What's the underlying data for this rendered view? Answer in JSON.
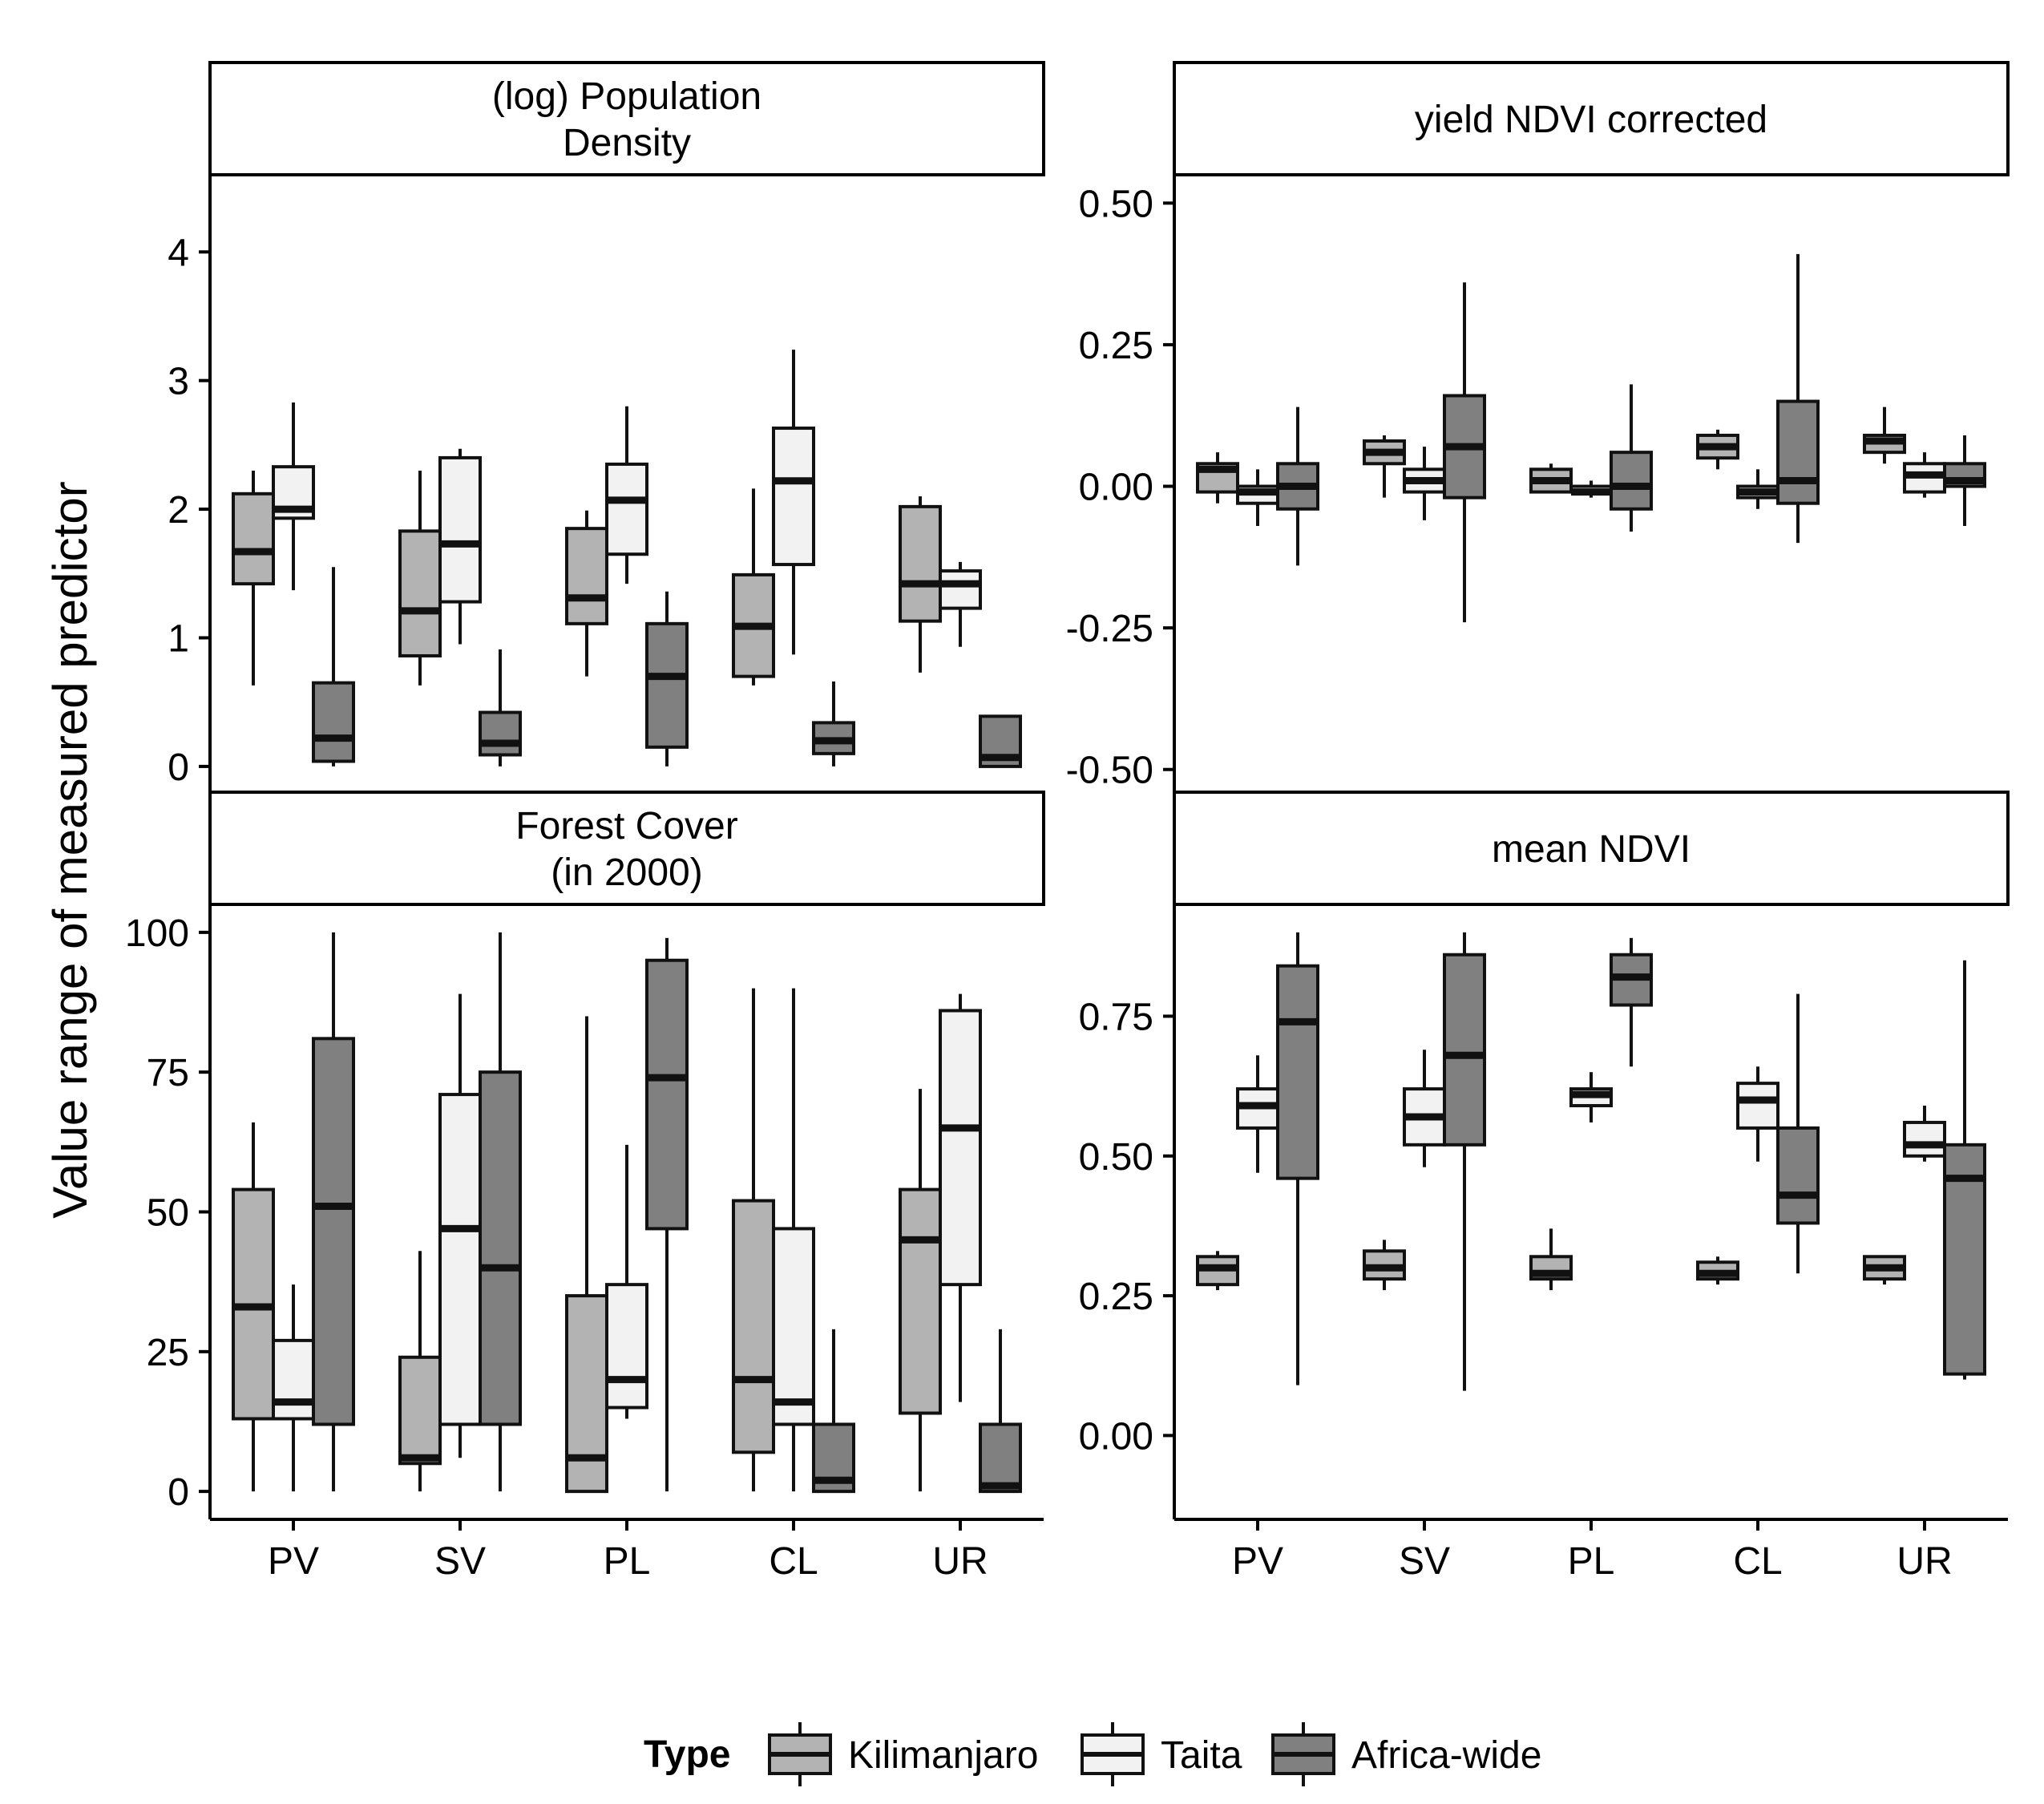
{
  "chart_data": {
    "type": "boxplot",
    "ylabel": "Value range of measured predictor",
    "categories": [
      "PV",
      "SV",
      "PL",
      "CL",
      "UR"
    ],
    "legend": {
      "title": "Type",
      "position": "bottom",
      "entries": [
        "Kilimanjaro",
        "Taita",
        "Africa-wide"
      ]
    },
    "series_colors": {
      "Kilimanjaro": "#b3b3b3",
      "Taita": "#f2f2f2",
      "Africa-wide": "#808080"
    },
    "panels": [
      {
        "id": "population",
        "strip": [
          "(log) Population",
          "Density"
        ],
        "ylim": [
          -0.2,
          4.6
        ],
        "yticks": [
          0,
          1,
          2,
          3,
          4
        ],
        "ytick_labels": [
          "0",
          "1",
          "2",
          "3",
          "4"
        ],
        "boxes": [
          {
            "category": "PV",
            "series": "Kilimanjaro",
            "min": 0.63,
            "q1": 1.42,
            "median": 1.67,
            "q3": 2.12,
            "max": 2.3
          },
          {
            "category": "PV",
            "series": "Taita",
            "min": 1.37,
            "q1": 1.93,
            "median": 2.0,
            "q3": 2.33,
            "max": 2.83
          },
          {
            "category": "PV",
            "series": "Africa-wide",
            "min": 0.0,
            "q1": 0.04,
            "median": 0.22,
            "q3": 0.65,
            "max": 1.55
          },
          {
            "category": "SV",
            "series": "Kilimanjaro",
            "min": 0.63,
            "q1": 0.86,
            "median": 1.21,
            "q3": 1.83,
            "max": 2.3
          },
          {
            "category": "SV",
            "series": "Taita",
            "min": 0.95,
            "q1": 1.28,
            "median": 1.73,
            "q3": 2.4,
            "max": 2.47
          },
          {
            "category": "SV",
            "series": "Africa-wide",
            "min": 0.0,
            "q1": 0.09,
            "median": 0.18,
            "q3": 0.42,
            "max": 0.91
          },
          {
            "category": "PL",
            "series": "Kilimanjaro",
            "min": 0.7,
            "q1": 1.11,
            "median": 1.31,
            "q3": 1.85,
            "max": 1.99
          },
          {
            "category": "PL",
            "series": "Taita",
            "min": 1.42,
            "q1": 1.65,
            "median": 2.07,
            "q3": 2.35,
            "max": 2.8
          },
          {
            "category": "PL",
            "series": "Africa-wide",
            "min": 0.0,
            "q1": 0.15,
            "median": 0.7,
            "q3": 1.11,
            "max": 1.36
          },
          {
            "category": "CL",
            "series": "Kilimanjaro",
            "min": 0.63,
            "q1": 0.7,
            "median": 1.09,
            "q3": 1.49,
            "max": 2.16
          },
          {
            "category": "CL",
            "series": "Taita",
            "min": 0.87,
            "q1": 1.57,
            "median": 2.22,
            "q3": 2.63,
            "max": 3.24
          },
          {
            "category": "CL",
            "series": "Africa-wide",
            "min": 0.0,
            "q1": 0.1,
            "median": 0.2,
            "q3": 0.34,
            "max": 0.66
          },
          {
            "category": "UR",
            "series": "Kilimanjaro",
            "min": 0.73,
            "q1": 1.13,
            "median": 1.42,
            "q3": 2.02,
            "max": 2.1
          },
          {
            "category": "UR",
            "series": "Taita",
            "min": 0.93,
            "q1": 1.23,
            "median": 1.42,
            "q3": 1.52,
            "max": 1.59
          },
          {
            "category": "UR",
            "series": "Africa-wide",
            "min": 0.0,
            "q1": 0.0,
            "median": 0.07,
            "q3": 0.39,
            "max": 0.39
          }
        ]
      },
      {
        "id": "yield",
        "strip": [
          "yield NDVI corrected"
        ],
        "ylim": [
          -0.54,
          0.55
        ],
        "yticks": [
          0.5,
          0.25,
          0.0,
          -0.25,
          -0.5
        ],
        "ytick_labels": [
          "0.50",
          "0.25",
          "0.00",
          "-0.25",
          "-0.50"
        ],
        "boxes": [
          {
            "category": "PV",
            "series": "Kilimanjaro",
            "min": -0.03,
            "q1": -0.01,
            "median": 0.03,
            "q3": 0.04,
            "max": 0.06
          },
          {
            "category": "PV",
            "series": "Taita",
            "min": -0.07,
            "q1": -0.03,
            "median": -0.01,
            "q3": 0.0,
            "max": 0.03
          },
          {
            "category": "PV",
            "series": "Africa-wide",
            "min": -0.14,
            "q1": -0.04,
            "median": 0.0,
            "q3": 0.04,
            "max": 0.14
          },
          {
            "category": "SV",
            "series": "Kilimanjaro",
            "min": -0.02,
            "q1": 0.04,
            "median": 0.06,
            "q3": 0.08,
            "max": 0.09
          },
          {
            "category": "SV",
            "series": "Taita",
            "min": -0.06,
            "q1": -0.01,
            "median": 0.01,
            "q3": 0.03,
            "max": 0.07
          },
          {
            "category": "SV",
            "series": "Africa-wide",
            "min": -0.24,
            "q1": -0.02,
            "median": 0.07,
            "q3": 0.16,
            "max": 0.36
          },
          {
            "category": "PL",
            "series": "Kilimanjaro",
            "min": -0.01,
            "q1": -0.01,
            "median": 0.01,
            "q3": 0.03,
            "max": 0.04
          },
          {
            "category": "PL",
            "series": "Taita",
            "min": -0.02,
            "q1": -0.01,
            "median": -0.01,
            "q3": 0.0,
            "max": 0.01
          },
          {
            "category": "PL",
            "series": "Africa-wide",
            "min": -0.08,
            "q1": -0.04,
            "median": 0.0,
            "q3": 0.06,
            "max": 0.18
          },
          {
            "category": "CL",
            "series": "Kilimanjaro",
            "min": 0.03,
            "q1": 0.05,
            "median": 0.07,
            "q3": 0.09,
            "max": 0.1
          },
          {
            "category": "CL",
            "series": "Taita",
            "min": -0.04,
            "q1": -0.02,
            "median": -0.01,
            "q3": 0.0,
            "max": 0.03
          },
          {
            "category": "CL",
            "series": "Africa-wide",
            "min": -0.1,
            "q1": -0.03,
            "median": 0.01,
            "q3": 0.15,
            "max": 0.41
          },
          {
            "category": "UR",
            "series": "Kilimanjaro",
            "min": 0.04,
            "q1": 0.06,
            "median": 0.08,
            "q3": 0.09,
            "max": 0.14
          },
          {
            "category": "UR",
            "series": "Taita",
            "min": -0.02,
            "q1": -0.01,
            "median": 0.02,
            "q3": 0.04,
            "max": 0.06
          },
          {
            "category": "UR",
            "series": "Africa-wide",
            "min": -0.07,
            "q1": 0.0,
            "median": 0.01,
            "q3": 0.04,
            "max": 0.09
          }
        ]
      },
      {
        "id": "forest",
        "strip": [
          "Forest Cover",
          "(in 2000)"
        ],
        "ylim": [
          -5,
          105
        ],
        "yticks": [
          0,
          25,
          50,
          75,
          100
        ],
        "ytick_labels": [
          "0",
          "25",
          "50",
          "75",
          "100"
        ],
        "boxes": [
          {
            "category": "PV",
            "series": "Kilimanjaro",
            "min": 0,
            "q1": 13,
            "median": 33,
            "q3": 54,
            "max": 66
          },
          {
            "category": "PV",
            "series": "Taita",
            "min": 0,
            "q1": 13,
            "median": 16,
            "q3": 27,
            "max": 37
          },
          {
            "category": "PV",
            "series": "Africa-wide",
            "min": 0,
            "q1": 12,
            "median": 51,
            "q3": 81,
            "max": 100
          },
          {
            "category": "SV",
            "series": "Kilimanjaro",
            "min": 0,
            "q1": 5,
            "median": 6,
            "q3": 24,
            "max": 43
          },
          {
            "category": "SV",
            "series": "Taita",
            "min": 6,
            "q1": 12,
            "median": 47,
            "q3": 71,
            "max": 89
          },
          {
            "category": "SV",
            "series": "Africa-wide",
            "min": 0,
            "q1": 12,
            "median": 40,
            "q3": 75,
            "max": 100
          },
          {
            "category": "PL",
            "series": "Kilimanjaro",
            "min": 0,
            "q1": 0,
            "median": 6,
            "q3": 35,
            "max": 85
          },
          {
            "category": "PL",
            "series": "Taita",
            "min": 13,
            "q1": 15,
            "median": 20,
            "q3": 37,
            "max": 62
          },
          {
            "category": "PL",
            "series": "Africa-wide",
            "min": 0,
            "q1": 47,
            "median": 74,
            "q3": 95,
            "max": 99
          },
          {
            "category": "CL",
            "series": "Kilimanjaro",
            "min": 0,
            "q1": 7,
            "median": 20,
            "q3": 52,
            "max": 90
          },
          {
            "category": "CL",
            "series": "Taita",
            "min": 0,
            "q1": 12,
            "median": 16,
            "q3": 47,
            "max": 90
          },
          {
            "category": "CL",
            "series": "Africa-wide",
            "min": 0,
            "q1": 0,
            "median": 2,
            "q3": 12,
            "max": 29
          },
          {
            "category": "UR",
            "series": "Kilimanjaro",
            "min": 0,
            "q1": 14,
            "median": 45,
            "q3": 54,
            "max": 72
          },
          {
            "category": "UR",
            "series": "Taita",
            "min": 16,
            "q1": 37,
            "median": 65,
            "q3": 86,
            "max": 89
          },
          {
            "category": "UR",
            "series": "Africa-wide",
            "min": 0,
            "q1": 0,
            "median": 1,
            "q3": 12,
            "max": 29
          }
        ]
      },
      {
        "id": "mean_ndvi",
        "strip": [
          "mean NDVI"
        ],
        "ylim": [
          -0.15,
          0.95
        ],
        "yticks": [
          0.0,
          0.25,
          0.5,
          0.75
        ],
        "ytick_labels": [
          "0.00",
          "0.25",
          "0.50",
          "0.75"
        ],
        "boxes": [
          {
            "category": "PV",
            "series": "Kilimanjaro",
            "min": 0.26,
            "q1": 0.27,
            "median": 0.3,
            "q3": 0.32,
            "max": 0.33
          },
          {
            "category": "PV",
            "series": "Taita",
            "min": 0.47,
            "q1": 0.55,
            "median": 0.59,
            "q3": 0.62,
            "max": 0.68
          },
          {
            "category": "PV",
            "series": "Africa-wide",
            "min": 0.09,
            "q1": 0.46,
            "median": 0.74,
            "q3": 0.84,
            "max": 0.9
          },
          {
            "category": "SV",
            "series": "Kilimanjaro",
            "min": 0.26,
            "q1": 0.28,
            "median": 0.3,
            "q3": 0.33,
            "max": 0.35
          },
          {
            "category": "SV",
            "series": "Taita",
            "min": 0.48,
            "q1": 0.52,
            "median": 0.57,
            "q3": 0.62,
            "max": 0.69
          },
          {
            "category": "SV",
            "series": "Africa-wide",
            "min": 0.08,
            "q1": 0.52,
            "median": 0.68,
            "q3": 0.86,
            "max": 0.9
          },
          {
            "category": "PL",
            "series": "Kilimanjaro",
            "min": 0.26,
            "q1": 0.28,
            "median": 0.29,
            "q3": 0.32,
            "max": 0.37
          },
          {
            "category": "PL",
            "series": "Taita",
            "min": 0.56,
            "q1": 0.59,
            "median": 0.61,
            "q3": 0.62,
            "max": 0.65
          },
          {
            "category": "PL",
            "series": "Africa-wide",
            "min": 0.66,
            "q1": 0.77,
            "median": 0.82,
            "q3": 0.86,
            "max": 0.89
          },
          {
            "category": "CL",
            "series": "Kilimanjaro",
            "min": 0.27,
            "q1": 0.28,
            "median": 0.29,
            "q3": 0.31,
            "max": 0.32
          },
          {
            "category": "CL",
            "series": "Taita",
            "min": 0.49,
            "q1": 0.55,
            "median": 0.6,
            "q3": 0.63,
            "max": 0.66
          },
          {
            "category": "CL",
            "series": "Africa-wide",
            "min": 0.29,
            "q1": 0.38,
            "median": 0.43,
            "q3": 0.55,
            "max": 0.79
          },
          {
            "category": "UR",
            "series": "Kilimanjaro",
            "min": 0.27,
            "q1": 0.28,
            "median": 0.3,
            "q3": 0.32,
            "max": 0.32
          },
          {
            "category": "UR",
            "series": "Taita",
            "min": 0.49,
            "q1": 0.5,
            "median": 0.52,
            "q3": 0.56,
            "max": 0.59
          },
          {
            "category": "UR",
            "series": "Africa-wide",
            "min": 0.1,
            "q1": 0.11,
            "median": 0.46,
            "q3": 0.52,
            "max": 0.85
          }
        ]
      }
    ]
  }
}
